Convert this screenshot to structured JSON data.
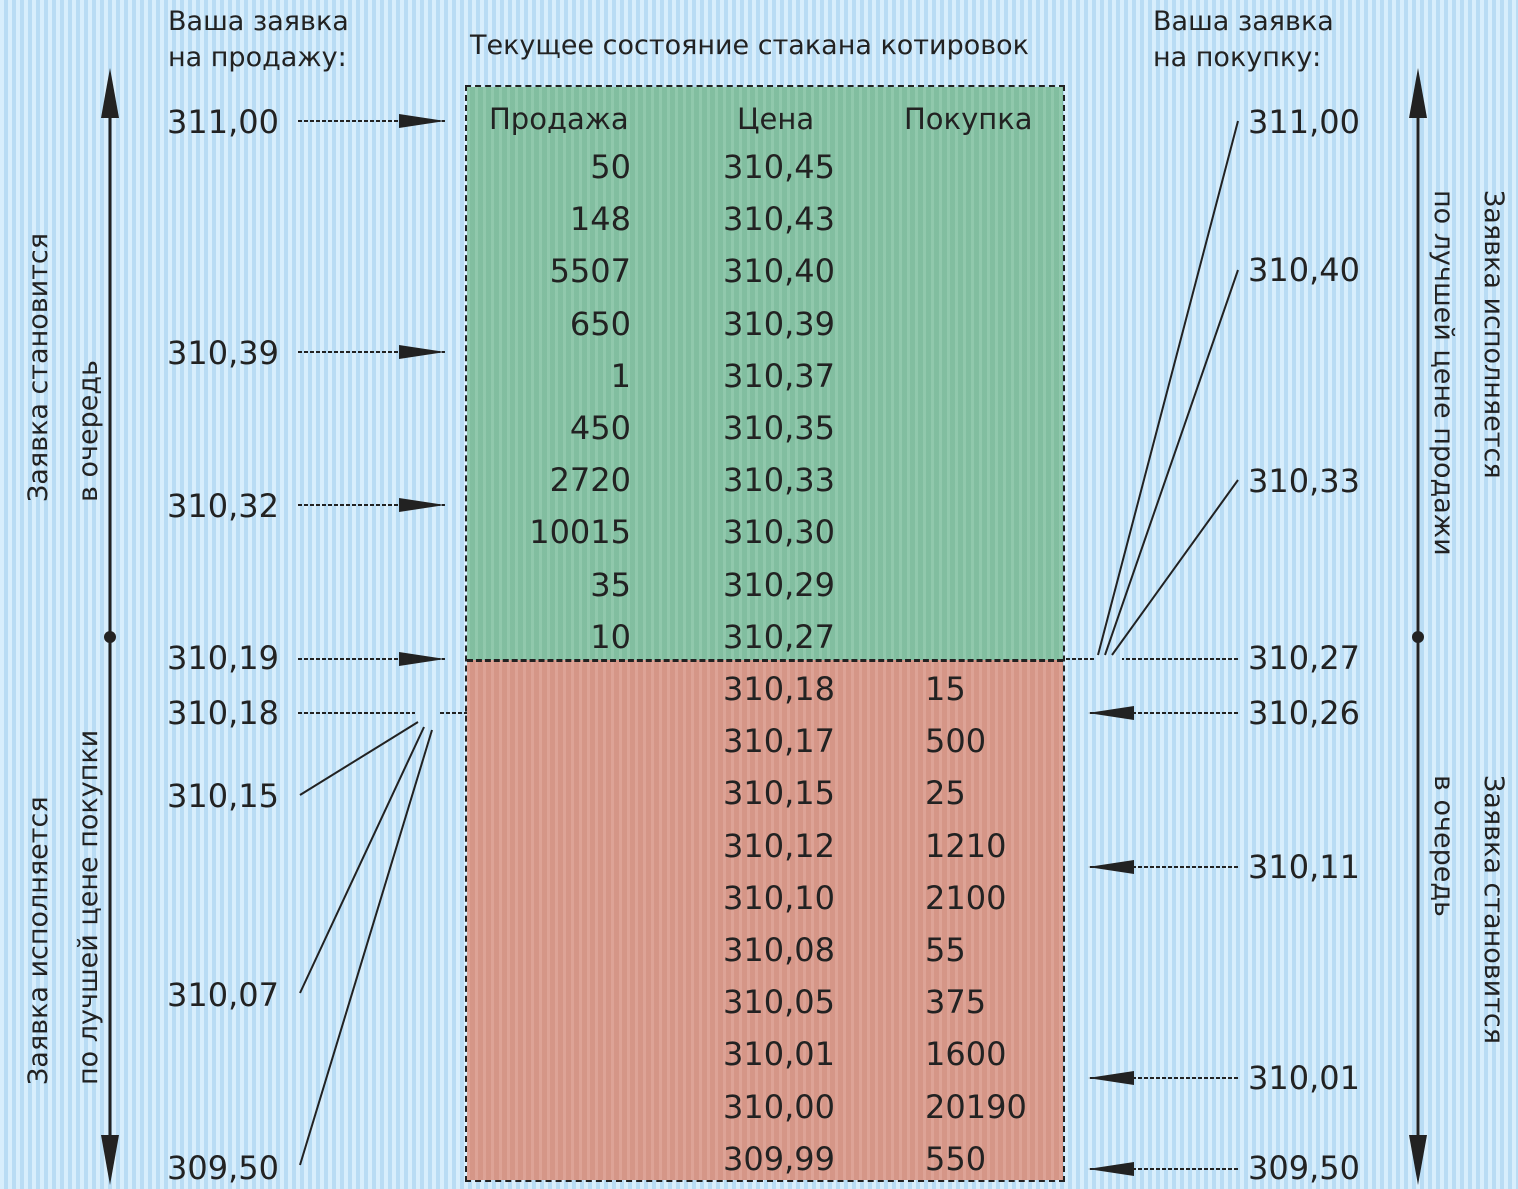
{
  "title": "Текущее состояние стакана котировок",
  "sell_order": {
    "label_line1": "Ваша заявка",
    "label_line2": "на продажу:"
  },
  "buy_order": {
    "label_line1": "Ваша заявка",
    "label_line2": "на покупку:"
  },
  "left_axis": {
    "upper_line1": "Заявка становится",
    "upper_line2": "в очередь",
    "lower_line1": "Заявка исполняется",
    "lower_line2": "по лучшей цене покупки"
  },
  "right_axis": {
    "upper_line1": "Заявка исполняется",
    "upper_line2": "по лучшей цене продажи",
    "lower_line1": "Заявка становится",
    "lower_line2": "в очередь"
  },
  "columns": {
    "sell": "Продажа",
    "price": "Цена",
    "buy": "Покупка"
  },
  "sell_rows": [
    {
      "qty": "50",
      "price": "310,45"
    },
    {
      "qty": "148",
      "price": "310,43"
    },
    {
      "qty": "5507",
      "price": "310,40"
    },
    {
      "qty": "650",
      "price": "310,39"
    },
    {
      "qty": "1",
      "price": "310,37"
    },
    {
      "qty": "450",
      "price": "310,35"
    },
    {
      "qty": "2720",
      "price": "310,33"
    },
    {
      "qty": "10015",
      "price": "310,30"
    },
    {
      "qty": "35",
      "price": "310,29"
    },
    {
      "qty": "10",
      "price": "310,27"
    }
  ],
  "buy_rows": [
    {
      "price": "310,18",
      "qty": "15"
    },
    {
      "price": "310,17",
      "qty": "500"
    },
    {
      "price": "310,15",
      "qty": "25"
    },
    {
      "price": "310,12",
      "qty": "1210"
    },
    {
      "price": "310,10",
      "qty": "2100"
    },
    {
      "price": "310,08",
      "qty": "55"
    },
    {
      "price": "310,05",
      "qty": "375"
    },
    {
      "price": "310,01",
      "qty": "1600"
    },
    {
      "price": "310,00",
      "qty": "20190"
    },
    {
      "price": "309,99",
      "qty": "550"
    }
  ],
  "sell_prices": [
    "311,00",
    "310,39",
    "310,32",
    "310,19",
    "310,18",
    "310,15",
    "310,07",
    "309,50"
  ],
  "buy_prices": [
    "311,00",
    "310,40",
    "310,33",
    "310,27",
    "310,26",
    "310,11",
    "310,01",
    "309,50"
  ],
  "colors": {
    "sell_zone": "#84c2a3",
    "buy_zone": "#d9998a",
    "background": "#cfe7f8"
  }
}
